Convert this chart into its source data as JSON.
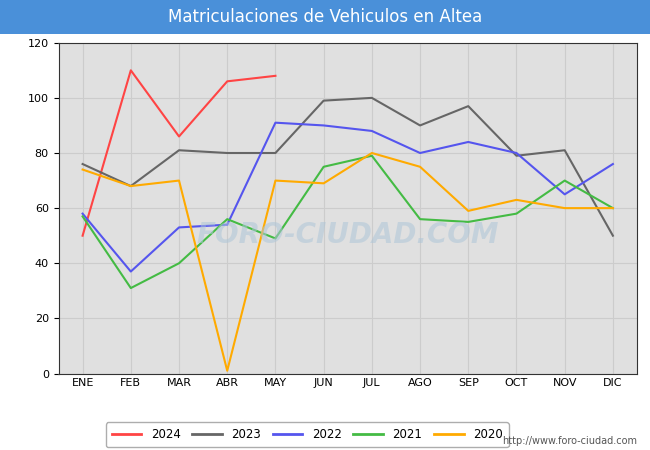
{
  "title": "Matriculaciones de Vehiculos en Altea",
  "title_bg_color": "#4a90d9",
  "title_text_color": "#ffffff",
  "months": [
    "ENE",
    "FEB",
    "MAR",
    "ABR",
    "MAY",
    "JUN",
    "JUL",
    "AGO",
    "SEP",
    "OCT",
    "NOV",
    "DIC"
  ],
  "ylim": [
    0,
    120
  ],
  "yticks": [
    0,
    20,
    40,
    60,
    80,
    100,
    120
  ],
  "series": {
    "2024": {
      "color": "#ff4444",
      "values": [
        50,
        110,
        86,
        106,
        108,
        null,
        null,
        null,
        null,
        null,
        null,
        null
      ]
    },
    "2023": {
      "color": "#666666",
      "values": [
        76,
        68,
        81,
        80,
        80,
        99,
        100,
        90,
        97,
        79,
        81,
        50
      ]
    },
    "2022": {
      "color": "#5555ee",
      "values": [
        58,
        37,
        53,
        54,
        91,
        90,
        88,
        80,
        84,
        80,
        65,
        76
      ]
    },
    "2021": {
      "color": "#44bb44",
      "values": [
        57,
        31,
        40,
        56,
        49,
        75,
        79,
        56,
        55,
        58,
        70,
        60
      ]
    },
    "2020": {
      "color": "#ffaa00",
      "values": [
        74,
        68,
        70,
        1,
        70,
        69,
        80,
        75,
        59,
        63,
        60,
        60
      ]
    }
  },
  "watermark": "FORO-CIUDAD.COM",
  "url": "http://www.foro-ciudad.com",
  "grid_color": "#cccccc",
  "plot_bg_color": "#e0e0e0",
  "fig_bg_color": "#ffffff",
  "title_fontsize": 12,
  "tick_fontsize": 8
}
